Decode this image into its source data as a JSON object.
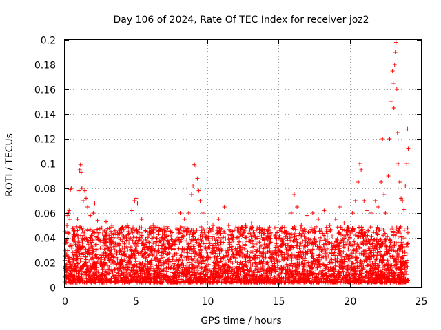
{
  "chart_data": {
    "type": "scatter",
    "title": "Day 106 of 2024, Rate Of TEC Index for receiver joz2",
    "xlabel": "GPS time / hours",
    "ylabel": "ROTI / TECUs",
    "xlim": [
      0,
      25
    ],
    "ylim": [
      0,
      0.2
    ],
    "x_ticks": [
      "0",
      "5",
      "10",
      "15",
      "20",
      "25"
    ],
    "y_ticks": [
      "0",
      "0.02",
      "0.04",
      "0.06",
      "0.08",
      "0.1",
      "0.12",
      "0.14",
      "0.16",
      "0.18",
      "0.2"
    ],
    "grid": true,
    "marker": "+",
    "color": "#ff0000",
    "series": [
      {
        "points": [
          [
            0.05,
            0.045
          ],
          [
            0.1,
            0.038
          ],
          [
            0.15,
            0.05
          ],
          [
            0.2,
            0.058
          ],
          [
            0.25,
            0.06
          ],
          [
            0.3,
            0.062
          ],
          [
            0.35,
            0.055
          ],
          [
            0.4,
            0.079
          ],
          [
            0.45,
            0.08
          ],
          [
            0.7,
            0.045
          ],
          [
            0.9,
            0.055
          ],
          [
            1.0,
            0.078
          ],
          [
            1.05,
            0.095
          ],
          [
            1.1,
            0.099
          ],
          [
            1.15,
            0.093
          ],
          [
            1.2,
            0.08
          ],
          [
            1.3,
            0.07
          ],
          [
            1.4,
            0.078
          ],
          [
            1.5,
            0.072
          ],
          [
            1.6,
            0.065
          ],
          [
            1.8,
            0.058
          ],
          [
            2.0,
            0.06
          ],
          [
            2.1,
            0.068
          ],
          [
            2.3,
            0.054
          ],
          [
            2.6,
            0.048
          ],
          [
            2.9,
            0.053
          ],
          [
            3.3,
            0.05
          ],
          [
            3.7,
            0.044
          ],
          [
            4.0,
            0.048
          ],
          [
            4.4,
            0.05
          ],
          [
            4.7,
            0.062
          ],
          [
            4.9,
            0.07
          ],
          [
            5.0,
            0.072
          ],
          [
            5.1,
            0.068
          ],
          [
            5.4,
            0.055
          ],
          [
            5.8,
            0.045
          ],
          [
            6.2,
            0.05
          ],
          [
            6.6,
            0.043
          ],
          [
            7.0,
            0.04
          ],
          [
            7.4,
            0.045
          ],
          [
            7.8,
            0.048
          ],
          [
            8.1,
            0.06
          ],
          [
            8.4,
            0.055
          ],
          [
            8.7,
            0.06
          ],
          [
            8.9,
            0.075
          ],
          [
            9.0,
            0.082
          ],
          [
            9.1,
            0.099
          ],
          [
            9.2,
            0.098
          ],
          [
            9.3,
            0.088
          ],
          [
            9.4,
            0.078
          ],
          [
            9.5,
            0.07
          ],
          [
            9.7,
            0.06
          ],
          [
            10.0,
            0.052
          ],
          [
            10.4,
            0.05
          ],
          [
            10.8,
            0.055
          ],
          [
            11.2,
            0.065
          ],
          [
            11.5,
            0.05
          ],
          [
            11.9,
            0.046
          ],
          [
            12.3,
            0.045
          ],
          [
            12.7,
            0.05
          ],
          [
            13.1,
            0.052
          ],
          [
            13.5,
            0.048
          ],
          [
            13.9,
            0.045
          ],
          [
            14.3,
            0.046
          ],
          [
            14.7,
            0.048
          ],
          [
            15.1,
            0.04
          ],
          [
            15.5,
            0.045
          ],
          [
            15.9,
            0.06
          ],
          [
            16.1,
            0.075
          ],
          [
            16.3,
            0.065
          ],
          [
            16.6,
            0.05
          ],
          [
            17.0,
            0.058
          ],
          [
            17.4,
            0.06
          ],
          [
            17.8,
            0.055
          ],
          [
            18.2,
            0.062
          ],
          [
            18.6,
            0.05
          ],
          [
            19.0,
            0.055
          ],
          [
            19.3,
            0.065
          ],
          [
            19.6,
            0.052
          ],
          [
            19.9,
            0.048
          ],
          [
            20.2,
            0.06
          ],
          [
            20.4,
            0.07
          ],
          [
            20.6,
            0.085
          ],
          [
            20.7,
            0.1
          ],
          [
            20.8,
            0.095
          ],
          [
            21.0,
            0.07
          ],
          [
            21.2,
            0.062
          ],
          [
            21.5,
            0.06
          ],
          [
            21.8,
            0.07
          ],
          [
            22.0,
            0.065
          ],
          [
            22.2,
            0.085
          ],
          [
            22.3,
            0.12
          ],
          [
            22.4,
            0.075
          ],
          [
            22.5,
            0.06
          ],
          [
            22.7,
            0.09
          ],
          [
            22.8,
            0.12
          ],
          [
            22.9,
            0.15
          ],
          [
            23.0,
            0.175
          ],
          [
            23.05,
            0.165
          ],
          [
            23.1,
            0.145
          ],
          [
            23.15,
            0.18
          ],
          [
            23.2,
            0.19
          ],
          [
            23.25,
            0.198
          ],
          [
            23.3,
            0.16
          ],
          [
            23.35,
            0.125
          ],
          [
            23.4,
            0.1
          ],
          [
            23.5,
            0.085
          ],
          [
            23.6,
            0.072
          ],
          [
            23.7,
            0.07
          ],
          [
            23.8,
            0.063
          ],
          [
            23.9,
            0.082
          ],
          [
            24.0,
            0.1
          ],
          [
            24.05,
            0.128
          ],
          [
            24.1,
            0.112
          ]
        ]
      }
    ]
  }
}
